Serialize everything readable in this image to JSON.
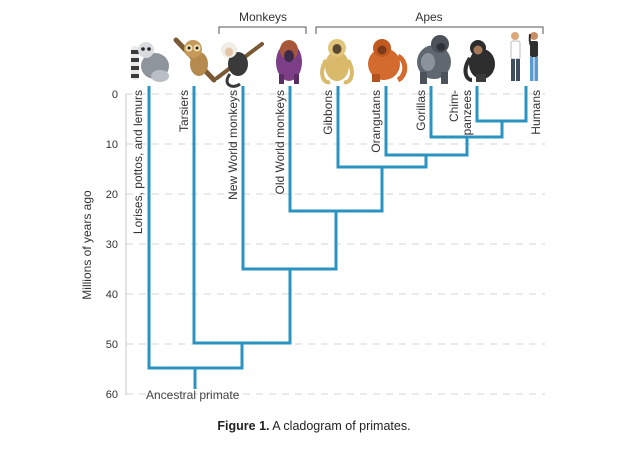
{
  "diagram": {
    "y_axis": {
      "title": "Millions of years ago",
      "ticks": [
        "0",
        "10",
        "20",
        "30",
        "40",
        "50",
        "60"
      ]
    },
    "groups": {
      "monkeys": "Monkeys",
      "apes": "Apes"
    },
    "taxa": {
      "lorises": "Lorises, pottos, and lemurs",
      "tarsiers": "Tarsiers",
      "new_world": "New World monkeys",
      "old_world": "Old World monkeys",
      "gibbons": "Gibbons",
      "orangutans": "Orangutans",
      "gorillas": "Gorillas",
      "chimps_1": "Chim-",
      "chimps_2": "panzees",
      "humans": "Humans"
    },
    "root_label": "Ancestral primate",
    "colors": {
      "branch": "#2a93c2",
      "grid": "#d6d6d6",
      "text": "#333333"
    },
    "icons": [
      "lemur-icon",
      "tarsier-icon",
      "capuchin-icon",
      "baboon-icon",
      "gibbon-icon",
      "orangutan-icon",
      "gorilla-icon",
      "chimpanzee-icon",
      "humans-icon"
    ]
  },
  "caption": {
    "number": "Figure 1.",
    "text": " A cladogram of primates."
  }
}
